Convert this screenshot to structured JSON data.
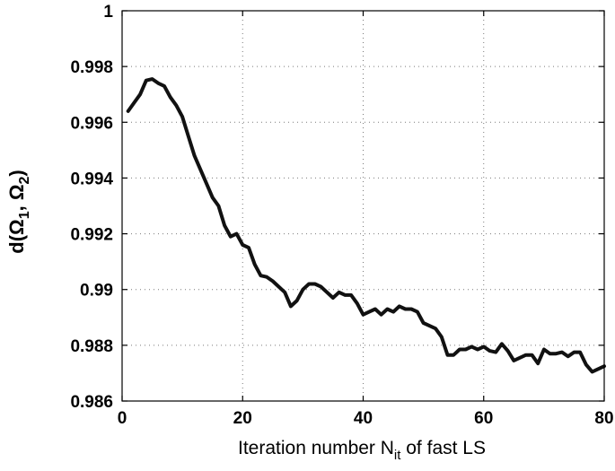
{
  "chart_data": {
    "type": "line",
    "title": "",
    "xlabel": "Iteration number N",
    "xlabel_sub": "it",
    "xlabel_suffix": " of fast LS",
    "ylabel": "d(Ω₁, Ω₂)",
    "ylabel_parts": {
      "prefix": "d(Ω",
      "sub1": "1",
      "mid": ", Ω",
      "sub2": "2",
      "suffix": ")"
    },
    "xlim": [
      0,
      80
    ],
    "ylim": [
      0.986,
      1.0
    ],
    "x_ticks": [
      0,
      20,
      40,
      60,
      80
    ],
    "x_tick_labels": [
      "0",
      "20",
      "40",
      "60",
      "80"
    ],
    "y_ticks": [
      0.986,
      0.988,
      0.99,
      0.992,
      0.994,
      0.996,
      0.998,
      1.0
    ],
    "y_tick_labels": [
      "0.986",
      "0.988",
      "0.99",
      "0.992",
      "0.994",
      "0.996",
      "0.998",
      "1"
    ],
    "grid": true,
    "series": [
      {
        "x": [
          1,
          2,
          3,
          4,
          5,
          6,
          7,
          8,
          9,
          10,
          11,
          12,
          13,
          14,
          15,
          16,
          17,
          18,
          19,
          20,
          21,
          22,
          23,
          24,
          25,
          26,
          27,
          28,
          29,
          30,
          31,
          32,
          33,
          34,
          35,
          36,
          37,
          38,
          39,
          40,
          41,
          42,
          43,
          44,
          45,
          46,
          47,
          48,
          49,
          50,
          51,
          52,
          53,
          54,
          55,
          56,
          57,
          58,
          59,
          60,
          61,
          62,
          63,
          64,
          65,
          66,
          67,
          68,
          69,
          70,
          71,
          72,
          73,
          74,
          75,
          76,
          77,
          78,
          79,
          80
        ],
        "y": [
          0.9964,
          0.9967,
          0.997,
          0.9975,
          0.99755,
          0.9974,
          0.9973,
          0.9969,
          0.9966,
          0.9962,
          0.9955,
          0.9948,
          0.9943,
          0.9938,
          0.9933,
          0.993,
          0.9923,
          0.9919,
          0.992,
          0.9916,
          0.9915,
          0.9909,
          0.9905,
          0.99045,
          0.9903,
          0.9901,
          0.9899,
          0.9894,
          0.9896,
          0.99,
          0.9902,
          0.9902,
          0.9901,
          0.9899,
          0.9897,
          0.9899,
          0.9898,
          0.9898,
          0.9895,
          0.9891,
          0.9892,
          0.9893,
          0.9891,
          0.9893,
          0.9892,
          0.9894,
          0.9893,
          0.9893,
          0.9892,
          0.9888,
          0.9887,
          0.9886,
          0.9883,
          0.98765,
          0.98765,
          0.98785,
          0.98785,
          0.98795,
          0.98785,
          0.98795,
          0.9878,
          0.98775,
          0.98805,
          0.9878,
          0.98745,
          0.98755,
          0.98765,
          0.98765,
          0.98735,
          0.98785,
          0.9877,
          0.9877,
          0.98775,
          0.9876,
          0.98775,
          0.98775,
          0.9873,
          0.98705,
          0.98715,
          0.98725
        ]
      }
    ]
  }
}
